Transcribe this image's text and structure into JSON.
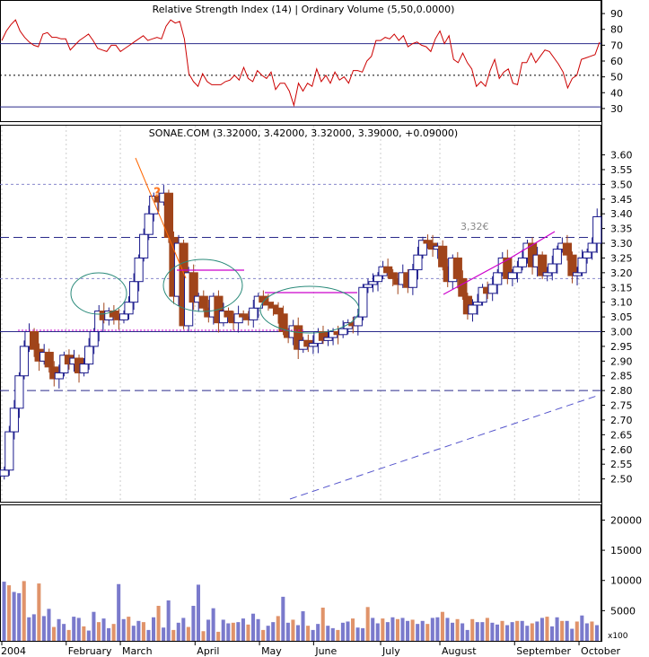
{
  "chart_data": [
    {
      "id": "rsi",
      "type": "line",
      "title": "Relative Strength Index (14) | Ordinary Volume (5,50,0.0000)",
      "ylim": [
        22,
        98
      ],
      "yticks": [
        30,
        40,
        50,
        60,
        70,
        80,
        90
      ],
      "reference_lines": {
        "upper": 71,
        "middle": 51,
        "lower": 31
      },
      "color": "#cc0000",
      "series": [
        {
          "values": [
            73,
            79,
            83,
            86,
            79,
            75,
            72,
            70,
            69,
            77,
            78,
            75,
            75,
            74,
            74,
            67,
            70,
            73,
            75,
            77,
            73,
            68,
            67,
            66,
            70,
            70,
            66,
            68,
            70,
            72,
            74,
            76,
            73,
            74,
            75,
            74,
            82,
            86,
            84,
            85,
            74,
            52,
            47,
            44,
            52,
            47,
            45,
            45,
            45,
            47,
            48,
            51,
            48,
            56,
            49,
            47,
            54,
            51,
            49,
            53,
            42,
            46,
            46,
            41,
            32,
            46,
            41,
            46,
            44,
            55,
            47,
            51,
            46,
            53,
            48,
            50,
            46,
            54,
            54,
            53,
            60,
            63,
            73,
            73,
            75,
            74,
            77,
            73,
            76,
            69,
            71,
            72,
            70,
            69,
            66,
            74,
            79,
            71,
            76,
            61,
            59,
            65,
            59,
            55,
            44,
            47,
            44,
            54,
            61,
            49,
            53,
            55,
            46,
            45,
            59,
            59,
            65,
            59,
            63,
            67,
            66,
            62,
            58,
            53,
            43,
            49,
            51,
            61,
            62,
            63,
            64,
            72
          ]
        }
      ]
    },
    {
      "id": "price",
      "type": "candlestick",
      "title": "SONAE.COM (3.32000, 3.42000, 3.32000, 3.39000, +0.09000)",
      "ylim": [
        2.45,
        3.62
      ],
      "yticks": [
        "3.60",
        "3.55",
        "3.50",
        "3.45",
        "3.40",
        "3.35",
        "3.30",
        "3.25",
        "3.20",
        "3.15",
        "3.10",
        "3.05",
        "3.00",
        "2.95",
        "2.90",
        "2.85",
        "2.80",
        "2.75",
        "2.70",
        "2.65",
        "2.60",
        "2.55",
        "2.50"
      ],
      "grid": true,
      "up_color": "#ffffff",
      "up_border": "#1a1a8c",
      "down_color": "#a0441a",
      "series": [
        {
          "values": [
            2.53,
            2.66,
            2.74,
            2.85,
            2.95,
            3.0,
            2.94,
            2.9,
            2.93,
            2.88,
            2.84,
            2.86,
            2.92,
            2.89,
            2.91,
            2.86,
            2.89,
            2.95,
            3.0,
            3.07,
            3.04,
            3.07,
            3.05,
            3.04,
            3.06,
            3.1,
            3.17,
            3.25,
            3.33,
            3.4,
            3.46,
            3.44,
            3.47,
            3.32,
            3.12,
            3.3,
            3.02,
            3.2,
            3.1,
            3.12,
            3.08,
            3.05,
            3.12,
            3.03,
            3.07,
            3.05,
            3.03,
            3.06,
            3.05,
            3.04,
            3.08,
            3.12,
            3.1,
            3.09,
            3.08,
            3.06,
            3.0,
            2.98,
            3.02,
            2.94,
            2.97,
            2.95,
            2.96,
            3.0,
            2.97,
            2.98,
            3.0,
            2.99,
            3.01,
            3.03,
            3.02,
            3.05,
            3.15,
            3.16,
            3.17,
            3.19,
            3.22,
            3.2,
            3.18,
            3.16,
            3.2,
            3.15,
            3.21,
            3.26,
            3.31,
            3.3,
            3.28,
            3.29,
            3.22,
            3.17,
            3.25,
            3.18,
            3.12,
            3.06,
            3.09,
            3.1,
            3.15,
            3.13,
            3.16,
            3.2,
            3.25,
            3.18,
            3.2,
            3.22,
            3.25,
            3.3,
            3.22,
            3.26,
            3.19,
            3.2,
            3.23,
            3.28,
            3.3,
            3.26,
            3.19,
            3.2,
            3.25,
            3.27,
            3.3,
            3.39
          ]
        }
      ],
      "reference_lines": [
        {
          "value": 3.5,
          "style": "dotted",
          "color": "#8888cc"
        },
        {
          "value": 3.32,
          "style": "dashed",
          "color": "#2a2a8a"
        },
        {
          "value": 3.18,
          "style": "dotted",
          "color": "#8888cc"
        },
        {
          "value": 3.0,
          "style": "solid",
          "color": "#2a2a8a"
        },
        {
          "value": 2.8,
          "style": "dashed",
          "color": "#2a2a8a"
        }
      ],
      "annotations": [
        {
          "type": "text",
          "text": "3,32€"
        },
        {
          "type": "text",
          "text": "?"
        }
      ]
    },
    {
      "id": "volume",
      "type": "bar",
      "ylim": [
        0,
        22000
      ],
      "yticks": [
        5000,
        10000,
        15000,
        20000
      ],
      "unit_label": "x100",
      "colors": [
        "#7a7acc",
        "#e0936a"
      ],
      "series": [
        {
          "values": [
            9800,
            9200,
            8100,
            7900,
            9900,
            3900,
            4400,
            9500,
            4100,
            5300,
            2300,
            3600,
            2800,
            1800,
            4000,
            3800,
            2400,
            1700,
            4800,
            3100,
            3700,
            2100,
            2800,
            9400,
            3600,
            4000,
            2500,
            3300,
            3100,
            1800,
            3900,
            5800,
            2200,
            6700,
            1800,
            3000,
            3800,
            2300,
            5800,
            9300,
            1600,
            3500,
            5400,
            1500,
            3500,
            2900,
            3000,
            3100,
            3700,
            2700,
            4500,
            3600,
            1800,
            2500,
            3100,
            4100,
            7300,
            3000,
            3500,
            2600,
            4900,
            2500,
            1800,
            2800,
            5500,
            2500,
            2100,
            1800,
            3000,
            3200,
            3700,
            2200,
            2100,
            5600,
            3800,
            2900,
            3700,
            3100,
            3900,
            3600,
            3800,
            3300,
            3500,
            2800,
            3300,
            2800,
            3800,
            3900,
            4800,
            3800,
            3000,
            3600,
            2900,
            1800,
            3600,
            3100,
            3100,
            3800,
            3000,
            2700,
            3300,
            2600,
            3100,
            3300,
            3300,
            2500,
            2900,
            3200,
            3800,
            4000,
            2400,
            3900,
            3300,
            3300,
            2000,
            3200,
            4200,
            2900,
            3200,
            2600
          ]
        }
      ]
    }
  ],
  "x_axis": {
    "labels": [
      "2004",
      "February",
      "March",
      "April",
      "May",
      "June",
      "July",
      "August",
      "September",
      "October"
    ],
    "positions": [
      0,
      25,
      46,
      75,
      100,
      121,
      147,
      170,
      199,
      224
    ],
    "total_days": 232
  }
}
